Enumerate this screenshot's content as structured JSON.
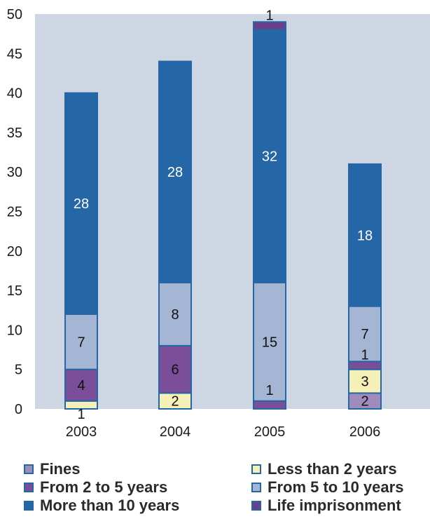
{
  "chart_data": {
    "type": "bar",
    "stacked": true,
    "categories": [
      "2003",
      "2004",
      "2005",
      "2006"
    ],
    "ylim": [
      0,
      50
    ],
    "yticks": [
      "0",
      "5",
      "10",
      "15",
      "20",
      "25",
      "30",
      "35",
      "40",
      "45",
      "50"
    ],
    "series": [
      {
        "name": "Fines",
        "values": [
          0,
          0,
          0,
          2
        ],
        "color": "#9f8cba",
        "label_color": "#111111",
        "labels": [
          null,
          null,
          null,
          "2"
        ]
      },
      {
        "name": "Less than 2 years",
        "values": [
          1,
          2,
          0,
          3
        ],
        "color": "#f4f0b8",
        "label_color": "#111111",
        "labels": [
          "1",
          "2",
          null,
          "3"
        ]
      },
      {
        "name": "From 2 to 5 years",
        "values": [
          4,
          6,
          1,
          1
        ],
        "color": "#7a4e98",
        "label_color": "#111111",
        "labels": [
          "4",
          "6",
          "1",
          "1"
        ]
      },
      {
        "name": "From 5 to 10 years",
        "values": [
          7,
          8,
          15,
          7
        ],
        "color": "#a5b6d5",
        "label_color": "#111111",
        "labels": [
          "7",
          "8",
          "15",
          "7"
        ]
      },
      {
        "name": "More than 10 years",
        "values": [
          28,
          28,
          32,
          18
        ],
        "color": "#2466a6",
        "label_color": "#ffffff",
        "labels": [
          "28",
          "28",
          "32",
          "18"
        ]
      },
      {
        "name": "Life imprisonment",
        "values": [
          0,
          0,
          1,
          0
        ],
        "color": "#6b3f8c",
        "label_color": "#111111",
        "labels": [
          null,
          null,
          "1",
          null
        ]
      }
    ],
    "legend_position": "bottom",
    "legend_columns": [
      [
        "Fines",
        "From 2 to 5 years",
        "More than 10 years"
      ],
      [
        "Less than 2 years",
        "From 5 to 10 years",
        "Life imprisonment"
      ]
    ],
    "colors": {
      "plot_background": "#cfd6e3",
      "bar_border": "#2466a6",
      "axis_text": "#1a1a1a"
    }
  }
}
